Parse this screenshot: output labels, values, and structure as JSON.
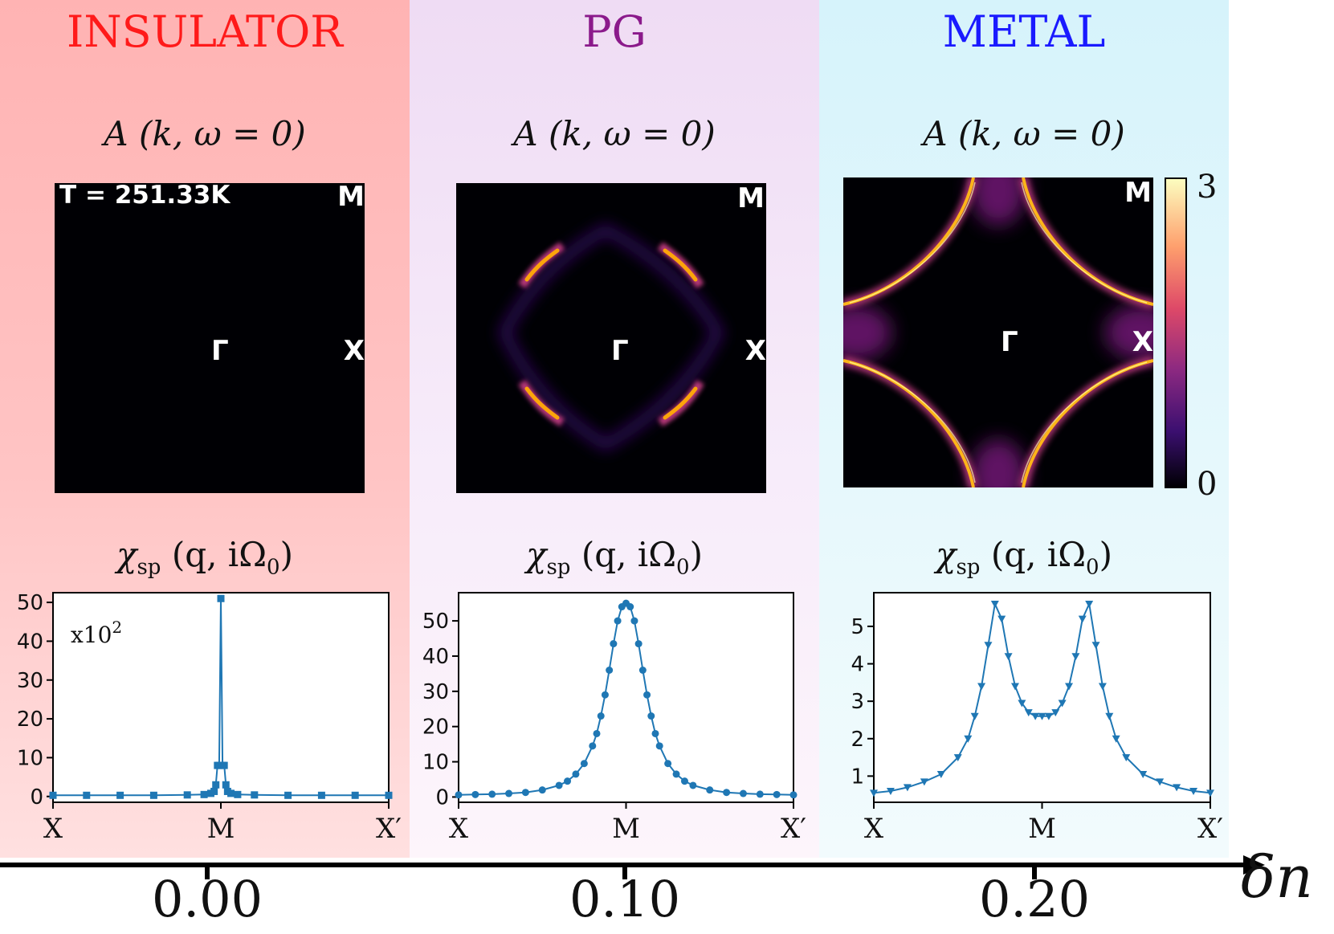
{
  "panels": [
    {
      "regime": "INSULATOR",
      "regime_color": "#ff1a1a",
      "spectral_title": "A (k, ω = 0)",
      "temperature_label": "T = 251.33K",
      "bz_labels": {
        "gamma": "Γ",
        "x": "X",
        "m": "M"
      },
      "chi_title": {
        "chi": "χ",
        "sub": "sp",
        "args": " (q, iΩ",
        "sub0": "0",
        "close": ")"
      },
      "x_ticks": [
        "X",
        "M",
        "X′"
      ],
      "scale_note": "x10",
      "scale_exp": "2"
    },
    {
      "regime": "PG",
      "regime_color": "#8b1a8b",
      "spectral_title": "A (k, ω = 0)",
      "bz_labels": {
        "gamma": "Γ",
        "x": "X",
        "m": "M"
      },
      "chi_title": {
        "chi": "χ",
        "sub": "sp",
        "args": " (q, iΩ",
        "sub0": "0",
        "close": ")"
      },
      "x_ticks": [
        "X",
        "M",
        "X′"
      ]
    },
    {
      "regime": "METAL",
      "regime_color": "#1a1aff",
      "spectral_title": "A (k, ω = 0)",
      "bz_labels": {
        "gamma": "Γ",
        "x": "X",
        "m": "M"
      },
      "chi_title": {
        "chi": "χ",
        "sub": "sp",
        "args": " (q, iΩ",
        "sub0": "0",
        "close": ")"
      },
      "x_ticks": [
        "X",
        "M",
        "X′"
      ]
    }
  ],
  "colorbar": {
    "min_label": "0",
    "max_label": "3",
    "vmin": 0,
    "vmax": 3,
    "colormap": "inferno"
  },
  "doping_axis": {
    "label": "δn",
    "ticks": [
      "0.00",
      "0.10",
      "0.20"
    ]
  },
  "chart_data": [
    {
      "type": "line",
      "title": "χsp (q, iΩ0)",
      "marker": "square",
      "color": "#1f77b4",
      "xticklabels": [
        "X",
        "M",
        "X′"
      ],
      "ylim": [
        -1.5,
        52.5
      ],
      "yticks": [
        0,
        10,
        20,
        30,
        40,
        50
      ],
      "annotation": "x10^2",
      "x": [
        0.0,
        0.1,
        0.2,
        0.3,
        0.4,
        0.45,
        0.47,
        0.48,
        0.485,
        0.49,
        0.495,
        0.5,
        0.505,
        0.51,
        0.515,
        0.52,
        0.53,
        0.55,
        0.6,
        0.7,
        0.8,
        0.9,
        1.0
      ],
      "y": [
        0.3,
        0.3,
        0.3,
        0.3,
        0.4,
        0.5,
        0.8,
        1.3,
        3.0,
        8.0,
        8.0,
        51.0,
        8.0,
        8.0,
        3.0,
        1.3,
        0.8,
        0.5,
        0.4,
        0.3,
        0.3,
        0.3,
        0.3
      ]
    },
    {
      "type": "line",
      "title": "χsp (q, iΩ0)",
      "marker": "circle",
      "color": "#1f77b4",
      "xticklabels": [
        "X",
        "M",
        "X′"
      ],
      "ylim": [
        -1.5,
        58
      ],
      "yticks": [
        0,
        10,
        20,
        30,
        40,
        50
      ],
      "x": [
        0.0,
        0.05,
        0.1,
        0.15,
        0.2,
        0.25,
        0.3,
        0.325,
        0.35,
        0.375,
        0.4,
        0.4125,
        0.425,
        0.4375,
        0.45,
        0.4625,
        0.475,
        0.4875,
        0.5,
        0.5125,
        0.525,
        0.5375,
        0.55,
        0.5625,
        0.575,
        0.5875,
        0.6,
        0.625,
        0.65,
        0.675,
        0.7,
        0.75,
        0.8,
        0.85,
        0.9,
        0.95,
        1.0
      ],
      "y": [
        0.6,
        0.7,
        0.8,
        1.0,
        1.3,
        2.0,
        3.3,
        4.5,
        6.5,
        9.5,
        14.5,
        18.0,
        23.0,
        29.0,
        36.0,
        43.5,
        50.0,
        54.0,
        55.0,
        54.0,
        50.0,
        43.5,
        36.0,
        29.0,
        23.0,
        18.0,
        14.5,
        9.5,
        6.5,
        4.5,
        3.3,
        2.0,
        1.3,
        1.0,
        0.8,
        0.7,
        0.6
      ]
    },
    {
      "type": "line",
      "title": "χsp (q, iΩ0)",
      "marker": "triangle-down",
      "color": "#1f77b4",
      "xticklabels": [
        "X",
        "M",
        "X′"
      ],
      "ylim": [
        0.3,
        5.9
      ],
      "yticks": [
        1,
        2,
        3,
        4,
        5
      ],
      "x": [
        0.0,
        0.05,
        0.1,
        0.15,
        0.2,
        0.25,
        0.28,
        0.3,
        0.32,
        0.34,
        0.36,
        0.38,
        0.4,
        0.42,
        0.44,
        0.46,
        0.48,
        0.5,
        0.52,
        0.54,
        0.56,
        0.58,
        0.6,
        0.62,
        0.64,
        0.66,
        0.68,
        0.7,
        0.72,
        0.75,
        0.8,
        0.85,
        0.9,
        0.95,
        1.0
      ],
      "y": [
        0.55,
        0.6,
        0.7,
        0.85,
        1.05,
        1.5,
        2.0,
        2.6,
        3.4,
        4.5,
        5.6,
        5.2,
        4.2,
        3.4,
        2.95,
        2.7,
        2.6,
        2.6,
        2.6,
        2.7,
        2.95,
        3.4,
        4.2,
        5.2,
        5.6,
        4.5,
        3.4,
        2.6,
        2.0,
        1.5,
        1.05,
        0.85,
        0.7,
        0.6,
        0.55
      ]
    }
  ]
}
